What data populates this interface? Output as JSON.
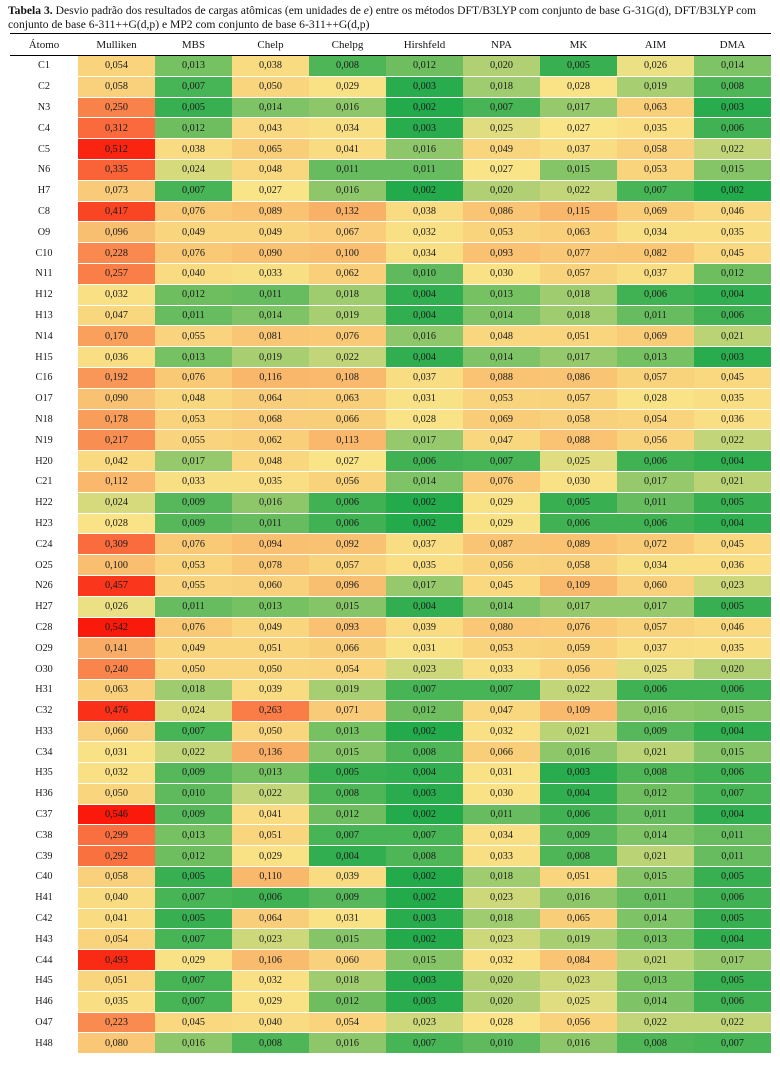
{
  "title": {
    "label": "Tabela 3.",
    "before_em": " Desvio padrão dos resultados de cargas atômicas (em unidades de ",
    "em": "e",
    "after_em": ") entre os métodos DFT/B3LYP com conjunto de base G-31G(d), DFT/B3LYP com conjunto de base 6-311++G(d,p) e MP2 com conjunto de base 6-311++G(d,p)"
  },
  "heatmap": {
    "low_color": "#22AA4B",
    "mid_color": "#F9E487",
    "high_color": "#FA190A",
    "scale": "3-color scale: green = lowest value, yellow = median, red = highest value"
  },
  "table": {
    "columns": [
      "Átomo",
      "Mulliken",
      "MBS",
      "Chelp",
      "Chelpg",
      "Hirshfeld",
      "NPA",
      "MK",
      "AIM",
      "DMA"
    ],
    "rows": [
      [
        "C1",
        "0,054",
        "0,013",
        "0,038",
        "0,008",
        "0,012",
        "0,020",
        "0,005",
        "0,026",
        "0,014"
      ],
      [
        "C2",
        "0,058",
        "0,007",
        "0,050",
        "0,029",
        "0,003",
        "0,018",
        "0,028",
        "0,019",
        "0,008"
      ],
      [
        "N3",
        "0,250",
        "0,005",
        "0,014",
        "0,016",
        "0,002",
        "0,007",
        "0,017",
        "0,063",
        "0,003"
      ],
      [
        "C4",
        "0,312",
        "0,012",
        "0,043",
        "0,034",
        "0,003",
        "0,025",
        "0,027",
        "0,035",
        "0,006"
      ],
      [
        "C5",
        "0,512",
        "0,038",
        "0,065",
        "0,041",
        "0,016",
        "0,049",
        "0,037",
        "0,058",
        "0,022"
      ],
      [
        "N6",
        "0,335",
        "0,024",
        "0,048",
        "0,011",
        "0,011",
        "0,027",
        "0,015",
        "0,053",
        "0,015"
      ],
      [
        "H7",
        "0,073",
        "0,007",
        "0,027",
        "0,016",
        "0,002",
        "0,020",
        "0,022",
        "0,007",
        "0,002"
      ],
      [
        "C8",
        "0,417",
        "0,076",
        "0,089",
        "0,132",
        "0,038",
        "0,086",
        "0,115",
        "0,069",
        "0,046"
      ],
      [
        "O9",
        "0,096",
        "0,049",
        "0,049",
        "0,067",
        "0,032",
        "0,053",
        "0,063",
        "0,034",
        "0,035"
      ],
      [
        "C10",
        "0,228",
        "0,076",
        "0,090",
        "0,100",
        "0,034",
        "0,093",
        "0,077",
        "0,082",
        "0,045"
      ],
      [
        "N11",
        "0,257",
        "0,040",
        "0,033",
        "0,062",
        "0,010",
        "0,030",
        "0,057",
        "0,037",
        "0,012"
      ],
      [
        "H12",
        "0,032",
        "0,012",
        "0,011",
        "0,018",
        "0,004",
        "0,013",
        "0,018",
        "0,006",
        "0,004"
      ],
      [
        "H13",
        "0,047",
        "0,011",
        "0,014",
        "0,019",
        "0,004",
        "0,014",
        "0,018",
        "0,011",
        "0,006"
      ],
      [
        "N14",
        "0,170",
        "0,055",
        "0,081",
        "0,076",
        "0,016",
        "0,048",
        "0,051",
        "0,069",
        "0,021"
      ],
      [
        "H15",
        "0,036",
        "0,013",
        "0,019",
        "0,022",
        "0,004",
        "0,014",
        "0,017",
        "0,013",
        "0,003"
      ],
      [
        "C16",
        "0,192",
        "0,076",
        "0,116",
        "0,108",
        "0,037",
        "0,088",
        "0,086",
        "0,057",
        "0,045"
      ],
      [
        "O17",
        "0,090",
        "0,048",
        "0,064",
        "0,063",
        "0,031",
        "0,053",
        "0,057",
        "0,028",
        "0,035"
      ],
      [
        "N18",
        "0,178",
        "0,053",
        "0,068",
        "0,066",
        "0,028",
        "0,069",
        "0,058",
        "0,054",
        "0,036"
      ],
      [
        "N19",
        "0,217",
        "0,055",
        "0,062",
        "0,113",
        "0,017",
        "0,047",
        "0,088",
        "0,056",
        "0,022"
      ],
      [
        "H20",
        "0,042",
        "0,017",
        "0,048",
        "0,027",
        "0,006",
        "0,007",
        "0,025",
        "0,006",
        "0,004"
      ],
      [
        "C21",
        "0,112",
        "0,033",
        "0,035",
        "0,056",
        "0,014",
        "0,076",
        "0,030",
        "0,017",
        "0,021"
      ],
      [
        "H22",
        "0,024",
        "0,009",
        "0,016",
        "0,006",
        "0,002",
        "0,029",
        "0,005",
        "0,011",
        "0,005"
      ],
      [
        "H23",
        "0,028",
        "0,009",
        "0,011",
        "0,006",
        "0,002",
        "0,029",
        "0,006",
        "0,006",
        "0,004"
      ],
      [
        "C24",
        "0,309",
        "0,076",
        "0,094",
        "0,092",
        "0,037",
        "0,087",
        "0,089",
        "0,072",
        "0,045"
      ],
      [
        "O25",
        "0,100",
        "0,053",
        "0,078",
        "0,057",
        "0,035",
        "0,056",
        "0,058",
        "0,034",
        "0,036"
      ],
      [
        "N26",
        "0,457",
        "0,055",
        "0,060",
        "0,096",
        "0,017",
        "0,045",
        "0,109",
        "0,060",
        "0,023"
      ],
      [
        "H27",
        "0,026",
        "0,011",
        "0,013",
        "0,015",
        "0,004",
        "0,014",
        "0,017",
        "0,017",
        "0,005"
      ],
      [
        "C28",
        "0,542",
        "0,076",
        "0,049",
        "0,093",
        "0,039",
        "0,080",
        "0,076",
        "0,057",
        "0,046"
      ],
      [
        "O29",
        "0,141",
        "0,049",
        "0,051",
        "0,066",
        "0,031",
        "0,053",
        "0,059",
        "0,037",
        "0,035"
      ],
      [
        "O30",
        "0,240",
        "0,050",
        "0,050",
        "0,054",
        "0,023",
        "0,033",
        "0,056",
        "0,025",
        "0,020"
      ],
      [
        "H31",
        "0,063",
        "0,018",
        "0,039",
        "0,019",
        "0,007",
        "0,007",
        "0,022",
        "0,006",
        "0,006"
      ],
      [
        "C32",
        "0,476",
        "0,024",
        "0,263",
        "0,071",
        "0,012",
        "0,047",
        "0,109",
        "0,016",
        "0,015"
      ],
      [
        "H33",
        "0,060",
        "0,007",
        "0,050",
        "0,013",
        "0,002",
        "0,032",
        "0,021",
        "0,009",
        "0,004"
      ],
      [
        "C34",
        "0,031",
        "0,022",
        "0,136",
        "0,015",
        "0,008",
        "0,066",
        "0,016",
        "0,021",
        "0,015"
      ],
      [
        "H35",
        "0,032",
        "0,009",
        "0,013",
        "0,005",
        "0,004",
        "0,031",
        "0,003",
        "0,008",
        "0,006"
      ],
      [
        "H36",
        "0,050",
        "0,010",
        "0,022",
        "0,008",
        "0,003",
        "0,030",
        "0,004",
        "0,012",
        "0,007"
      ],
      [
        "C37",
        "0,546",
        "0,009",
        "0,041",
        "0,012",
        "0,002",
        "0,011",
        "0,006",
        "0,011",
        "0,004"
      ],
      [
        "C38",
        "0,299",
        "0,013",
        "0,051",
        "0,007",
        "0,007",
        "0,034",
        "0,009",
        "0,014",
        "0,011"
      ],
      [
        "C39",
        "0,292",
        "0,012",
        "0,029",
        "0,004",
        "0,008",
        "0,033",
        "0,008",
        "0,021",
        "0,011"
      ],
      [
        "C40",
        "0,058",
        "0,005",
        "0,110",
        "0,039",
        "0,002",
        "0,018",
        "0,051",
        "0,015",
        "0,005"
      ],
      [
        "H41",
        "0,040",
        "0,007",
        "0,006",
        "0,009",
        "0,002",
        "0,023",
        "0,016",
        "0,011",
        "0,006"
      ],
      [
        "C42",
        "0,041",
        "0,005",
        "0,064",
        "0,031",
        "0,003",
        "0,018",
        "0,065",
        "0,014",
        "0,005"
      ],
      [
        "H43",
        "0,054",
        "0,007",
        "0,023",
        "0,015",
        "0,002",
        "0,023",
        "0,019",
        "0,013",
        "0,004"
      ],
      [
        "C44",
        "0,493",
        "0,029",
        "0,106",
        "0,060",
        "0,015",
        "0,032",
        "0,084",
        "0,021",
        "0,017"
      ],
      [
        "H45",
        "0,051",
        "0,007",
        "0,032",
        "0,018",
        "0,003",
        "0,020",
        "0,023",
        "0,013",
        "0,005"
      ],
      [
        "H46",
        "0,035",
        "0,007",
        "0,029",
        "0,012",
        "0,003",
        "0,020",
        "0,025",
        "0,014",
        "0,006"
      ],
      [
        "O47",
        "0,223",
        "0,045",
        "0,040",
        "0,054",
        "0,023",
        "0,028",
        "0,056",
        "0,022",
        "0,022"
      ],
      [
        "H48",
        "0,080",
        "0,016",
        "0,008",
        "0,016",
        "0,007",
        "0,010",
        "0,016",
        "0,008",
        "0,007"
      ]
    ]
  }
}
